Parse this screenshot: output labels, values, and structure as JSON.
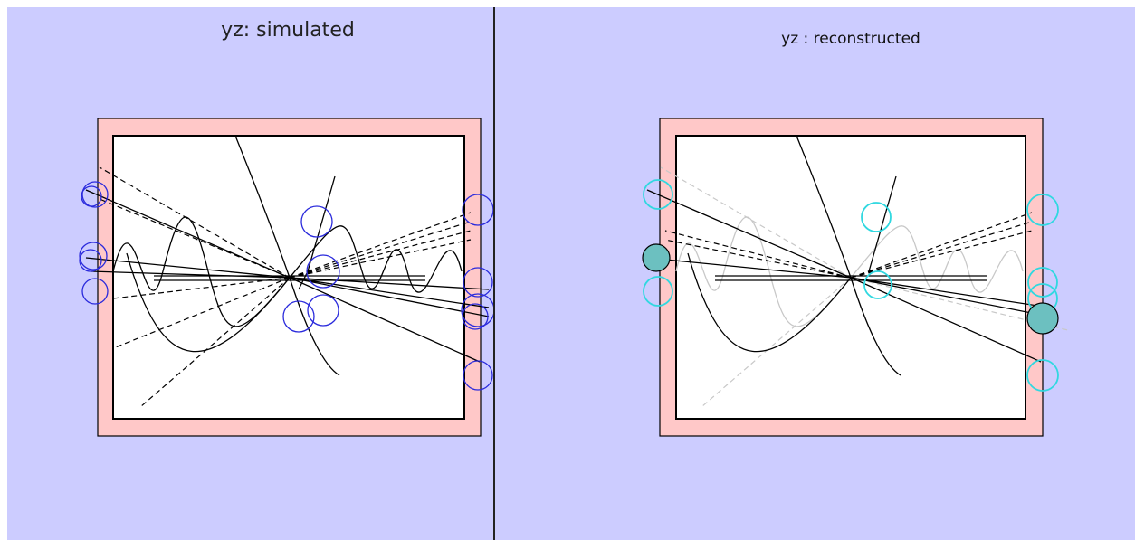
{
  "panels": [
    {
      "title": "yz: simulated"
    },
    {
      "title": "yz : reconstructed"
    }
  ]
}
